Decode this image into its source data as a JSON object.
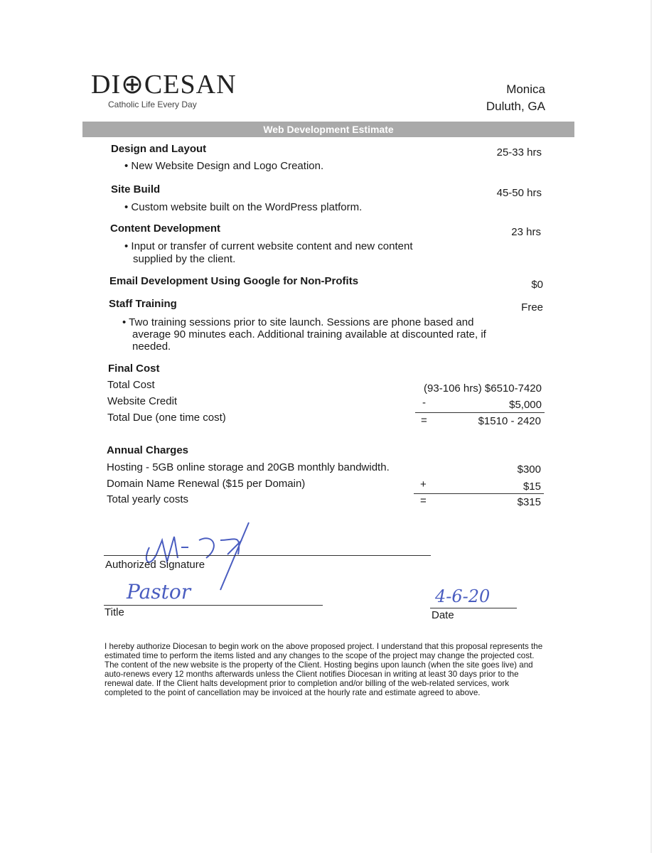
{
  "header": {
    "logo": "DI⊕CESAN",
    "tagline": "Catholic Life Every Day",
    "client_name": "Monica",
    "client_location": "Duluth, GA"
  },
  "title": "Web Development Estimate",
  "items": [
    {
      "heading": "Design and Layout",
      "amount": "25-33  hrs",
      "bullet": "• New Website Design and Logo Creation."
    },
    {
      "heading": "Site Build",
      "amount": "45-50  hrs",
      "bullet": "• Custom website built on the WordPress platform."
    },
    {
      "heading": "Content Development",
      "amount": "23  hrs",
      "bullet": "• Input or transfer of current website content and new content",
      "bullet2": "supplied by the client."
    },
    {
      "heading": "Email Development Using Google for Non-Profits",
      "amount": "$0"
    },
    {
      "heading": "Staff Training",
      "amount": "Free",
      "bullet": "• Two training sessions prior to site launch. Sessions are phone based and",
      "bullet2": "average 90 minutes each. Additional training available at discounted rate, if",
      "bullet3": "needed."
    }
  ],
  "final_cost": {
    "heading": "Final Cost",
    "rows": [
      {
        "label": "Total Cost",
        "op": "",
        "value": "(93-106 hrs) $6510-7420"
      },
      {
        "label": "Website Credit",
        "op": "-",
        "value": "$5,000"
      },
      {
        "label": "Total Due (one time cost)",
        "op": "=",
        "value": "$1510 - 2420"
      }
    ]
  },
  "annual": {
    "heading": "Annual Charges",
    "rows": [
      {
        "label": "Hosting - 5GB online storage and 20GB monthly bandwidth.",
        "op": "",
        "value": "$300"
      },
      {
        "label": "Domain Name Renewal ($15 per Domain)",
        "op": "+",
        "value": "$15"
      },
      {
        "label": "Total yearly costs",
        "op": "=",
        "value": "$315"
      }
    ]
  },
  "signature": {
    "label": "Authorized Signature",
    "title_label": "Title",
    "title_value": "Pastor",
    "date_label": "Date",
    "date_value": "4-6-20",
    "signature_text": "M.D"
  },
  "disclaimer": "I hereby authorize Diocesan to begin work on the above proposed project. I understand that this proposal represents the estimated time to perform the items listed and any changes to the scope of the project may change the projected cost. The content of the new website is the property of the Client. Hosting begins upon launch (when the site goes live) and auto-renews every 12 months afterwards unless the Client notifies Diocesan in writing at least 30 days prior to the renewal date. If the Client halts development prior to completion and/or billing of the web-related services, work completed to the point of cancellation may be invoiced at the hourly rate and estimate agreed to above.",
  "colors": {
    "band": "#a9a9a9",
    "ink": "#4a5dc0"
  }
}
